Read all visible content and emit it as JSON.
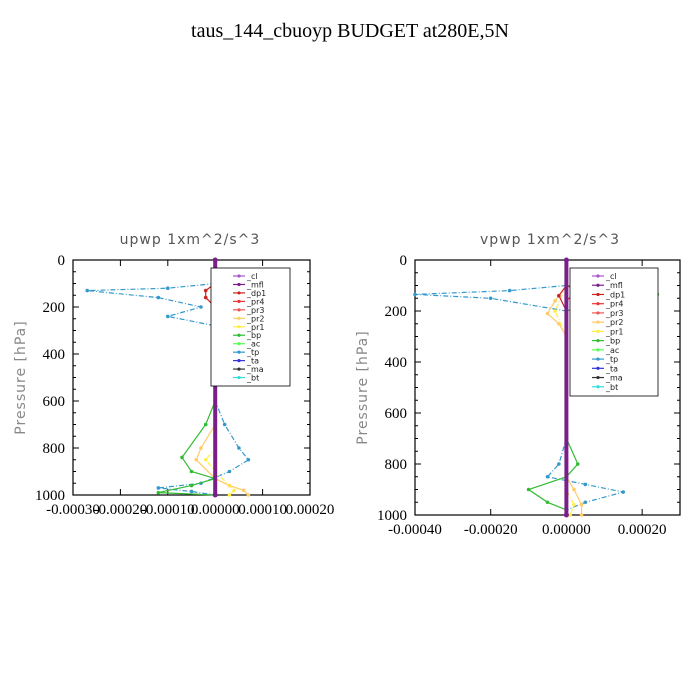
{
  "title": "taus_144_cbuoyp  BUDGET at280E,5N",
  "legend_entries": [
    "_cl",
    "_mfl",
    "_dp1",
    "_pr4",
    "_pr3",
    "_pr2",
    "_pr1",
    "_bp",
    "_ac",
    "_tp",
    "_ta",
    "_ma",
    "_bt"
  ],
  "series_colors": {
    "_cl": "#aa55cc",
    "_mfl": "#7a1f8a",
    "_dp1": "#cc2222",
    "_pr4": "#ee3333",
    "_pr3": "#ee5555",
    "_pr2": "#ffcc66",
    "_pr1": "#ffee44",
    "_bp": "#33bb33",
    "_ac": "#55ff55",
    "_tp": "#3399cc",
    "_ta": "#3333dd",
    "_ma": "#333333",
    "_bt": "#33dddd"
  },
  "chart_data": [
    {
      "type": "line",
      "title": "upwp   1xm^2/s^3",
      "ylabel": "Pressure [hPa]",
      "xlim": [
        -0.0003,
        0.0002
      ],
      "ylim": [
        1000,
        0
      ],
      "x_ticks": [
        -0.0003,
        -0.0002,
        -0.0001,
        0.0,
        0.0001,
        0.0002
      ],
      "x_tick_labels": [
        "-0.00030",
        "-0.00020",
        "-0.00010",
        "0.00000",
        "0.00010",
        "0.00020"
      ],
      "y_ticks": [
        0,
        200,
        400,
        600,
        800,
        1000
      ],
      "legend": "top-right",
      "series": [
        {
          "name": "_tp",
          "points": [
            [
              0.0,
              100
            ],
            [
              -0.0001,
              120
            ],
            [
              -0.00027,
              130
            ],
            [
              -0.00012,
              160
            ],
            [
              -3e-05,
              200
            ],
            [
              -0.0001,
              240
            ],
            [
              0.0,
              280
            ],
            [
              0.0,
              300
            ],
            [
              0.0,
              400
            ],
            [
              -5e-06,
              480
            ],
            [
              0.0,
              600
            ],
            [
              2e-05,
              700
            ],
            [
              5e-05,
              800
            ],
            [
              7e-05,
              850
            ],
            [
              3e-05,
              900
            ],
            [
              -3e-05,
              950
            ],
            [
              -0.00012,
              970
            ],
            [
              -5e-05,
              985
            ],
            [
              0.0,
              1000
            ]
          ]
        },
        {
          "name": "_bp",
          "points": [
            [
              0.0,
              100
            ],
            [
              3e-05,
              120
            ],
            [
              0.00014,
              130
            ],
            [
              5e-05,
              150
            ],
            [
              0.0,
              200
            ],
            [
              0.0,
              400
            ],
            [
              0.0,
              600
            ],
            [
              -2e-05,
              700
            ],
            [
              -7e-05,
              840
            ],
            [
              -5e-05,
              900
            ],
            [
              0.0,
              930
            ],
            [
              -5e-05,
              960
            ],
            [
              -0.00012,
              990
            ],
            [
              0.0,
              1000
            ]
          ]
        },
        {
          "name": "_pr2",
          "points": [
            [
              0.0,
              100
            ],
            [
              3e-05,
              130
            ],
            [
              0.0,
              200
            ],
            [
              0.0,
              700
            ],
            [
              -3e-05,
              800
            ],
            [
              -4e-05,
              850
            ],
            [
              0.0,
              930
            ],
            [
              3e-05,
              960
            ],
            [
              6e-05,
              980
            ],
            [
              7e-05,
              1000
            ]
          ]
        },
        {
          "name": "_pr1",
          "points": [
            [
              0.0,
              100
            ],
            [
              2e-05,
              130
            ],
            [
              0.0,
              200
            ],
            [
              0.0,
              800
            ],
            [
              -2e-05,
              850
            ],
            [
              0.0,
              900
            ],
            [
              4e-05,
              980
            ],
            [
              3e-05,
              1000
            ]
          ]
        },
        {
          "name": "_dp1",
          "points": [
            [
              0.0,
              100
            ],
            [
              -2e-05,
              130
            ],
            [
              -2e-05,
              160
            ],
            [
              0.0,
              200
            ],
            [
              0.0,
              1000
            ]
          ]
        },
        {
          "name": "_pr4",
          "points": [
            [
              0.0,
              100
            ],
            [
              2e-05,
              120
            ],
            [
              2e-05,
              150
            ],
            [
              0.0,
              200
            ],
            [
              0.0,
              1000
            ]
          ]
        },
        {
          "name": "_mfl",
          "points": [
            [
              0.0,
              0
            ],
            [
              0.0,
              1000
            ]
          ]
        }
      ]
    },
    {
      "type": "line",
      "title": "vpwp   1xm^2/s^3",
      "ylabel": "Pressure [hPa]",
      "xlim": [
        -0.0004,
        0.0003
      ],
      "ylim": [
        1000,
        0
      ],
      "x_ticks": [
        -0.0004,
        -0.0002,
        0.0,
        0.0002
      ],
      "x_tick_labels": [
        "-0.00040",
        "-0.00020",
        "0.00000",
        "0.00020"
      ],
      "y_ticks": [
        0,
        200,
        400,
        600,
        800,
        1000
      ],
      "legend": "top-right",
      "series": [
        {
          "name": "_tp",
          "points": [
            [
              0.0,
              100
            ],
            [
              -0.00015,
              120
            ],
            [
              -0.0004,
              135
            ],
            [
              -0.0002,
              150
            ],
            [
              0.0,
              200
            ],
            [
              0.0,
              500
            ],
            [
              0.0,
              700
            ],
            [
              -2e-05,
              800
            ],
            [
              -5e-05,
              850
            ],
            [
              5e-05,
              880
            ],
            [
              0.00015,
              910
            ],
            [
              5e-05,
              950
            ],
            [
              0.0,
              980
            ],
            [
              0.0,
              1000
            ]
          ]
        },
        {
          "name": "_bp",
          "points": [
            [
              0.0,
              100
            ],
            [
              0.0001,
              120
            ],
            [
              0.00024,
              135
            ],
            [
              8e-05,
              160
            ],
            [
              0.0,
              200
            ],
            [
              0.0,
              700
            ],
            [
              3e-05,
              800
            ],
            [
              0.0,
              850
            ],
            [
              -0.0001,
              900
            ],
            [
              -5e-05,
              950
            ],
            [
              0.0,
              980
            ],
            [
              0.0,
              1000
            ]
          ]
        },
        {
          "name": "_pr2",
          "points": [
            [
              0.0,
              100
            ],
            [
              -3e-05,
              160
            ],
            [
              -5e-05,
              210
            ],
            [
              -2e-05,
              250
            ],
            [
              0.0,
              300
            ],
            [
              0.0,
              850
            ],
            [
              2e-05,
              900
            ],
            [
              4e-05,
              960
            ],
            [
              4e-05,
              1000
            ]
          ]
        },
        {
          "name": "_pr1",
          "points": [
            [
              0.0,
              100
            ],
            [
              -3e-05,
              200
            ],
            [
              0.0,
              300
            ],
            [
              0.0,
              900
            ],
            [
              2e-05,
              960
            ],
            [
              1e-05,
              1000
            ]
          ]
        },
        {
          "name": "_dp1",
          "points": [
            [
              0.0,
              100
            ],
            [
              -2e-05,
              140
            ],
            [
              0.0,
              200
            ],
            [
              0.0,
              1000
            ]
          ]
        },
        {
          "name": "_pr4",
          "points": [
            [
              0.0,
              100
            ],
            [
              3e-05,
              120
            ],
            [
              0.0,
              160
            ],
            [
              0.0,
              1000
            ]
          ]
        },
        {
          "name": "_mfl",
          "points": [
            [
              0.0,
              0
            ],
            [
              0.0,
              1000
            ]
          ]
        }
      ]
    }
  ]
}
